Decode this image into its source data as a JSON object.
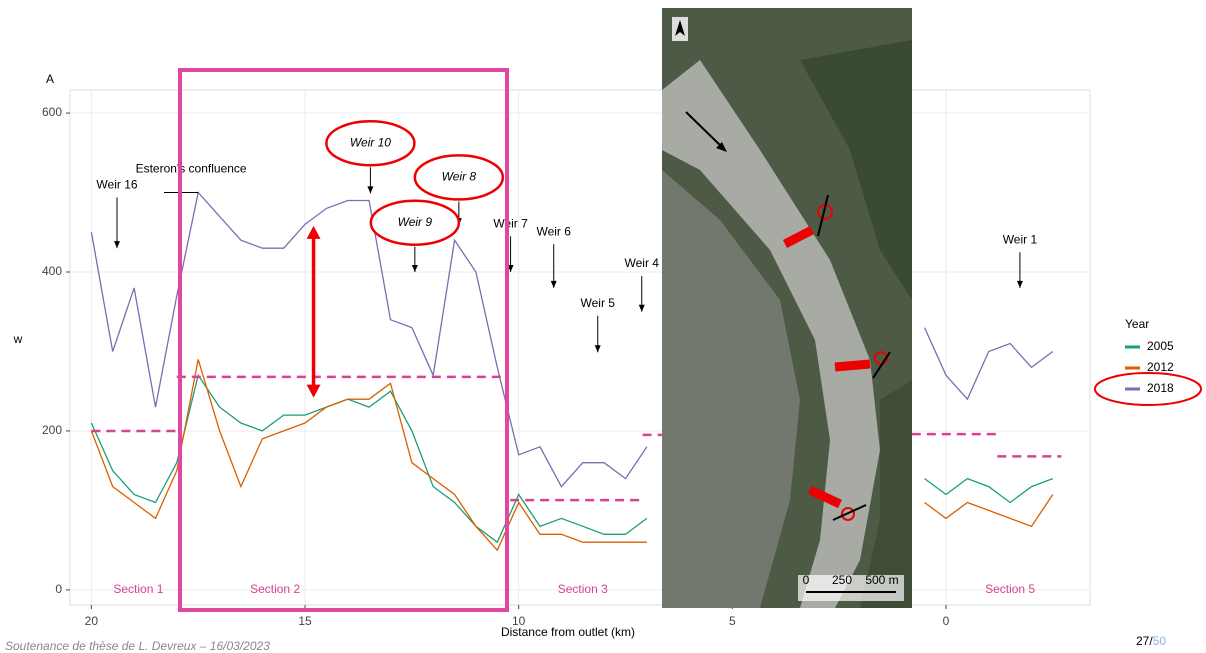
{
  "chart_data": {
    "type": "line",
    "panel_label": "A",
    "x_label": "Distance from outlet (km)",
    "y_label": "w",
    "xlim": [
      20.5,
      -3.37
    ],
    "ylim": [
      -19,
      629
    ],
    "xticks": [
      20,
      15,
      10,
      5,
      0
    ],
    "yticks": [
      0,
      200,
      400,
      600
    ],
    "grid": true,
    "legend_title": "Year",
    "x": [
      20,
      19.5,
      19,
      18.5,
      18,
      17.5,
      17,
      16.5,
      16,
      15.5,
      15,
      14.5,
      14,
      13.5,
      13,
      12.5,
      12,
      11.5,
      11,
      10.5,
      10,
      9.5,
      9,
      8.5,
      8,
      7.5,
      7,
      3.5,
      0.5,
      0,
      -0.5,
      -1,
      -1.5,
      -2,
      -2.5
    ],
    "series": [
      {
        "name": "2005",
        "color": "#1b9e77",
        "values": [
          210,
          150,
          120,
          110,
          160,
          270,
          230,
          210,
          200,
          220,
          220,
          230,
          240,
          230,
          250,
          200,
          130,
          110,
          80,
          60,
          120,
          80,
          90,
          80,
          70,
          70,
          90,
          null,
          140,
          120,
          140,
          130,
          110,
          130,
          140
        ]
      },
      {
        "name": "2012",
        "color": "#d95f02",
        "values": [
          200,
          130,
          110,
          90,
          150,
          290,
          200,
          130,
          190,
          200,
          210,
          230,
          240,
          240,
          260,
          160,
          140,
          120,
          80,
          50,
          110,
          70,
          70,
          60,
          60,
          60,
          60,
          null,
          110,
          90,
          110,
          100,
          90,
          80,
          120
        ]
      },
      {
        "name": "2018",
        "color": "#7570b3",
        "values": [
          450,
          300,
          380,
          230,
          370,
          500,
          470,
          440,
          430,
          430,
          460,
          480,
          490,
          490,
          340,
          330,
          270,
          440,
          400,
          280,
          170,
          180,
          130,
          160,
          160,
          140,
          180,
          null,
          330,
          270,
          240,
          300,
          310,
          280,
          300
        ]
      }
    ],
    "section_means": [
      {
        "x": [
          20,
          18
        ],
        "value": 200
      },
      {
        "x": [
          18,
          10.3
        ],
        "value": 268
      },
      {
        "x": [
          10.2,
          7.1
        ],
        "value": 113
      },
      {
        "x": [
          7.1,
          6.65
        ],
        "value": 195
      },
      {
        "x": [
          0.8,
          -1.2
        ],
        "value": 196
      },
      {
        "x": [
          -1.2,
          -2.7
        ],
        "value": 168
      }
    ],
    "sections": [
      {
        "label": "Section 1",
        "x": 18.9
      },
      {
        "label": "Section 2",
        "x": 15.7
      },
      {
        "label": "Section 3",
        "x": 8.5
      },
      {
        "label": "Section 5",
        "x": -1.5
      }
    ],
    "annotations": [
      {
        "label": "Weir 16",
        "x": 19.4,
        "y": 509,
        "arrow_to": 430,
        "circled": false
      },
      {
        "label": "Weir 10",
        "x": 13.47,
        "y": 562,
        "arrow_to": 499,
        "circled": true
      },
      {
        "label": "Weir 8",
        "x": 11.4,
        "y": 519,
        "arrow_to": 459,
        "circled": true
      },
      {
        "label": "Weir 9",
        "x": 12.43,
        "y": 462,
        "arrow_to": 400,
        "circled": true
      },
      {
        "label": "Weir 7",
        "x": 10.19,
        "y": 460,
        "arrow_to": 400,
        "circled": false
      },
      {
        "label": "Weir 6",
        "x": 9.18,
        "y": 450,
        "arrow_to": 380,
        "circled": false
      },
      {
        "label": "Weir 5",
        "x": 8.15,
        "y": 360,
        "arrow_to": 299,
        "circled": false
      },
      {
        "label": "Weir 4",
        "x": 7.12,
        "y": 410,
        "arrow_to": 350,
        "circled": false
      },
      {
        "label": "Weir 1",
        "x": -1.73,
        "y": 440,
        "arrow_to": 380,
        "circled": false
      }
    ],
    "confluence": {
      "label": "Esteron's confluence",
      "x": [
        18.3,
        17.5
      ],
      "y": 500
    },
    "difference_arrow": {
      "x": 14.8,
      "from": 242,
      "to": 458
    }
  },
  "map": {
    "scale_labels": [
      "0",
      "250",
      "500 m"
    ]
  },
  "footer": {
    "text": "Soutenance de thèse de L. Devreux – 16/03/2023",
    "page": "27/",
    "total": "50"
  }
}
